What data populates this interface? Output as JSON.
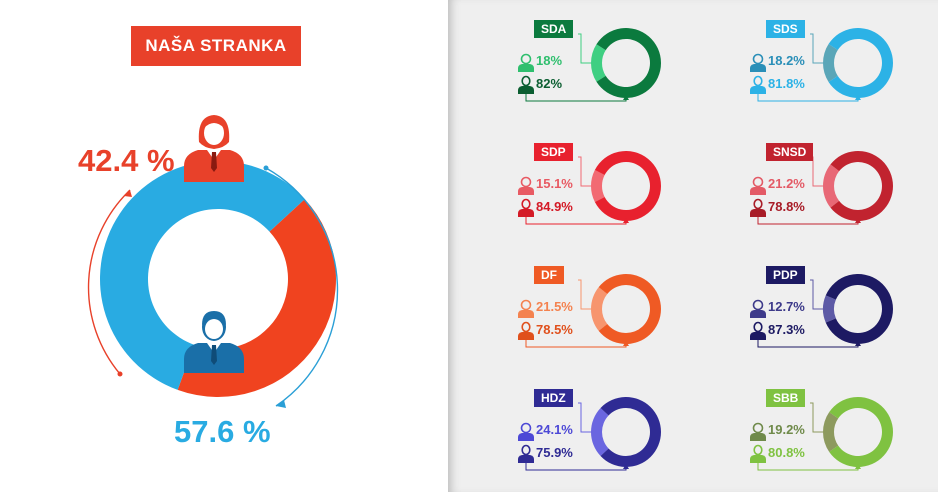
{
  "main": {
    "title": "NAŠA STRANKA",
    "female_pct": "42.4 %",
    "male_pct": "57.6 %",
    "colors": {
      "female": "#f0431f",
      "male": "#29abe2",
      "title_bg": "#e8412a"
    }
  },
  "chart_data": [
    {
      "type": "pie",
      "title": "NAŠA STRANKA",
      "categories": [
        "female",
        "male"
      ],
      "values": [
        42.4,
        57.6
      ]
    },
    {
      "type": "pie",
      "title": "SDA",
      "categories": [
        "female",
        "male"
      ],
      "values": [
        18,
        82
      ]
    },
    {
      "type": "pie",
      "title": "SDS",
      "categories": [
        "female",
        "male"
      ],
      "values": [
        18.2,
        81.8
      ]
    },
    {
      "type": "pie",
      "title": "SDP",
      "categories": [
        "female",
        "male"
      ],
      "values": [
        15.1,
        84.9
      ]
    },
    {
      "type": "pie",
      "title": "SNSD",
      "categories": [
        "female",
        "male"
      ],
      "values": [
        21.2,
        78.8
      ]
    },
    {
      "type": "pie",
      "title": "DF",
      "categories": [
        "female",
        "male"
      ],
      "values": [
        21.5,
        78.5
      ]
    },
    {
      "type": "pie",
      "title": "PDP",
      "categories": [
        "female",
        "male"
      ],
      "values": [
        12.7,
        87.3
      ]
    },
    {
      "type": "pie",
      "title": "HDZ",
      "categories": [
        "female",
        "male"
      ],
      "values": [
        24.1,
        75.9
      ]
    },
    {
      "type": "pie",
      "title": "SBB",
      "categories": [
        "female",
        "male"
      ],
      "values": [
        19.2,
        80.8
      ]
    }
  ],
  "parties": [
    {
      "name": "SDA",
      "female": "18%",
      "male": "82%",
      "female_value": 18,
      "color": "#0b7a3e",
      "light": "#3fcf82",
      "text_f": "#2fbf6e",
      "text_m": "#0b5e31"
    },
    {
      "name": "SDS",
      "female": "18.2%",
      "male": "81.8%",
      "female_value": 18.2,
      "color": "#2cb2e6",
      "light": "#5aa6b8",
      "text_f": "#2a8fb8",
      "text_m": "#2cb2e6"
    },
    {
      "name": "SDP",
      "female": "15.1%",
      "male": "84.9%",
      "female_value": 15.1,
      "color": "#e8212e",
      "light": "#f26a73",
      "text_f": "#e85a63",
      "text_m": "#d41a26"
    },
    {
      "name": "SNSD",
      "female": "21.2%",
      "male": "78.8%",
      "female_value": 21.2,
      "color": "#c1232f",
      "light": "#e86876",
      "text_f": "#e35a66",
      "text_m": "#a81c27"
    },
    {
      "name": "DF",
      "female": "21.5%",
      "male": "78.5%",
      "female_value": 21.5,
      "color": "#ef5a24",
      "light": "#f7956e",
      "text_f": "#f4824f",
      "text_m": "#e0501c"
    },
    {
      "name": "PDP",
      "female": "12.7%",
      "male": "87.3%",
      "female_value": 12.7,
      "color": "#1d1a63",
      "light": "#5d5aa6",
      "text_f": "#3d3a8a",
      "text_m": "#1d1a63"
    },
    {
      "name": "HDZ",
      "female": "24.1%",
      "male": "75.9%",
      "female_value": 24.1,
      "color": "#2f2b94",
      "light": "#6a66e0",
      "text_f": "#4d49d6",
      "text_m": "#2f2b94"
    },
    {
      "name": "SBB",
      "female": "19.2%",
      "male": "80.8%",
      "female_value": 19.2,
      "color": "#7fc241",
      "light": "#8d9a5e",
      "text_f": "#6f8a4a",
      "text_m": "#7fc241"
    }
  ]
}
